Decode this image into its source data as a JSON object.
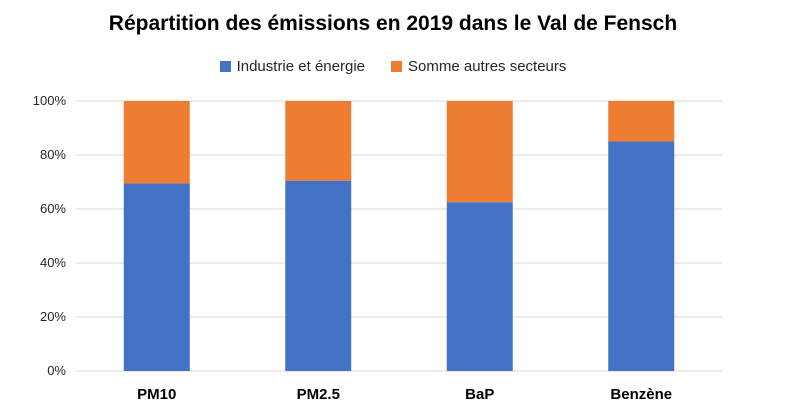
{
  "chart_data": {
    "type": "bar",
    "stacked": true,
    "title": "Répartition des émissions en 2019 dans le Val de Fensch",
    "categories": [
      "PM10",
      "PM2.5",
      "BaP",
      "Benzène"
    ],
    "series": [
      {
        "name": "Industrie et énergie",
        "color": "#4472C4",
        "values": [
          69.5,
          70.5,
          62.5,
          85
        ]
      },
      {
        "name": "Somme autres secteurs",
        "color": "#ED7D31",
        "values": [
          30.5,
          29.5,
          37.5,
          15
        ]
      }
    ],
    "ylim": [
      0,
      100
    ],
    "yticks": [
      "0%",
      "20%",
      "40%",
      "60%",
      "80%",
      "100%"
    ],
    "grid": true,
    "legend_position": "top"
  }
}
